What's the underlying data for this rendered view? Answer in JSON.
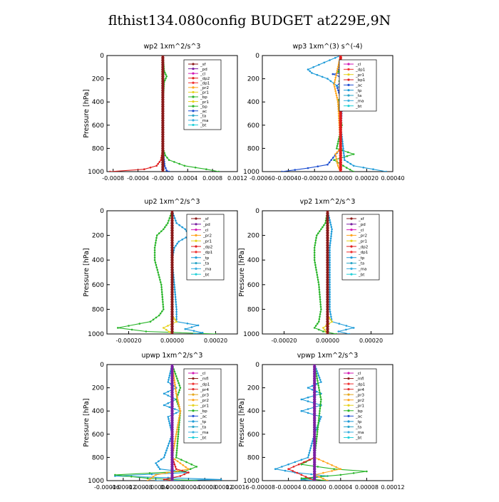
{
  "page": {
    "title": "flthist134.080config  BUDGET at229E,9N"
  },
  "colors": {
    "sf": "#8b1a1a",
    "pd": "#7a1fa2",
    "cl": "#d31ab5",
    "dp2": "#e01e1e",
    "dp1": "#f03030",
    "pr2": "#ffa51e",
    "pr1": "#e6d21e",
    "bp": "#2ab52a",
    "ac": "#1e4fd1",
    "tp": "#1e9bd8",
    "ta": "#2aa5c8",
    "ma": "#3cb0e0",
    "bt": "#20d0d8",
    "mfl": "#8b1a1a",
    "pr3": "#e6a81e",
    "pr4": "#e03030",
    "axis": "#000000"
  },
  "chart_data": [
    {
      "type": "line",
      "title": "wp2   1xm^2/s^3",
      "ylabel": "Pressure  [hPa]",
      "xlim": [
        -0.0009,
        0.0012
      ],
      "ylim": [
        1000,
        0
      ],
      "xticks": [
        -0.0008,
        -0.0004,
        0.0,
        0.0004,
        0.0008,
        0.0012
      ],
      "xtick_labels": [
        "-0.0008",
        "-0.0004",
        "-0.0000",
        "0.0004",
        "0.0008",
        "0.0012"
      ],
      "yticks": [
        0,
        200,
        400,
        600,
        800,
        1000
      ],
      "legend": [
        "_sf",
        "_pd",
        "_cl",
        "_dp2",
        "_dp1",
        "_pr2",
        "_pr1",
        "_bp",
        "_pr1",
        "_bp",
        "_ac",
        "_ta",
        "_ma",
        "_bt"
      ],
      "legend_position": "top-right",
      "series": [
        {
          "name": "_dp2",
          "key": "dp2",
          "y": [
            0,
            100,
            200,
            400,
            600,
            800,
            900,
            950,
            980,
            1000
          ],
          "values": [
            0,
            0,
            0,
            0,
            0,
            0,
            -3e-05,
            -0.0001,
            -0.0003,
            -0.00085
          ]
        },
        {
          "name": "_bp",
          "key": "bp",
          "y": [
            0,
            130,
            180,
            230,
            400,
            800,
            860,
            900,
            950,
            980,
            1000
          ],
          "values": [
            0,
            2e-05,
            6e-05,
            2e-05,
            0,
            0,
            4e-05,
            0.0001,
            0.00035,
            0.0007,
            0.0009
          ]
        },
        {
          "name": "_ac",
          "key": "ac",
          "y": [
            0,
            800,
            950,
            990,
            1000
          ],
          "values": [
            0,
            0,
            3e-05,
            6e-05,
            0.0001
          ]
        },
        {
          "name": "_sf",
          "key": "sf",
          "y": [
            0,
            200,
            400,
            600,
            800,
            1000
          ],
          "values": [
            0,
            0,
            0,
            0,
            0,
            0
          ]
        }
      ]
    },
    {
      "type": "line",
      "title": "wp3   1xm^(3) s^(-4)",
      "ylabel": "",
      "xlim": [
        -0.0006,
        0.0004
      ],
      "ylim": [
        1000,
        0
      ],
      "xticks": [
        -0.0006,
        -0.0004,
        -0.0002,
        0.0,
        0.0002,
        0.0004
      ],
      "xtick_labels": [
        "-0.00060",
        "-0.00040",
        "-0.00020",
        "0.00000",
        "0.00020",
        "0.00040"
      ],
      "yticks": [
        0,
        200,
        400,
        600,
        800,
        1000
      ],
      "legend": [
        "_cl",
        "_dp1",
        "_pr1",
        "_bp1",
        "_ac",
        "_tp",
        "_ta",
        "_ma",
        "_bt"
      ],
      "legend_position": "top-right",
      "series": [
        {
          "name": "_bp1",
          "key": "bp",
          "y": [
            0,
            100,
            140,
            180,
            220,
            300,
            400,
            600,
            800,
            850,
            900,
            950,
            1000
          ],
          "values": [
            0,
            1e-05,
            -2e-05,
            3e-05,
            -1e-05,
            2e-05,
            -2e-05,
            1e-05,
            -3e-05,
            0.0001,
            -5e-05,
            2e-05,
            0.0001
          ]
        },
        {
          "name": "_ac",
          "key": "ac",
          "y": [
            0,
            120,
            140,
            160,
            200,
            260,
            400,
            800,
            940,
            970,
            1000
          ],
          "values": [
            0,
            -2e-05,
            0.00012,
            -6e-05,
            4e-05,
            -3e-05,
            1e-05,
            0,
            -0.0001,
            -0.00025,
            -0.00045
          ]
        },
        {
          "name": "_tp",
          "key": "tp",
          "y": [
            0,
            120,
            150,
            200,
            300,
            400,
            600,
            900,
            950,
            980,
            1000
          ],
          "values": [
            0,
            -0.00025,
            -0.00022,
            -0.0001,
            2e-05,
            0,
            0,
            3e-05,
            0.0001,
            0.00025,
            0.00035
          ]
        },
        {
          "name": "_pr1",
          "key": "pr2",
          "y": [
            0,
            150,
            250,
            400,
            800,
            850,
            950,
            1000
          ],
          "values": [
            0,
            -3e-05,
            -5e-05,
            -2e-05,
            0,
            -4e-05,
            -2e-05,
            0
          ]
        },
        {
          "name": "_cl",
          "key": "dp2",
          "y": [
            0,
            200,
            400,
            600,
            800,
            1000
          ],
          "values": [
            0,
            0,
            0,
            0,
            0,
            0
          ]
        }
      ]
    },
    {
      "type": "line",
      "title": "up2   1xm^2/s^3",
      "ylabel": "Pressure  [hPa]",
      "xlim": [
        -0.0003,
        0.0003
      ],
      "ylim": [
        1000,
        0
      ],
      "xticks": [
        -0.0002,
        0.0,
        0.0002
      ],
      "xtick_labels": [
        "-0.00020",
        "0.00000",
        "0.00020"
      ],
      "yticks": [
        0,
        200,
        400,
        600,
        800,
        1000
      ],
      "legend": [
        "_sf",
        "_pd",
        "_cl",
        "_pr2",
        "_pr1",
        "_dp2",
        "_dp1",
        "_tp",
        "_ta",
        "_ma",
        "_bt"
      ],
      "legend_position": "top-right",
      "series": [
        {
          "name": "_dp1",
          "key": "bp",
          "y": [
            0,
            100,
            150,
            200,
            300,
            400,
            600,
            800,
            850,
            900,
            950,
            980,
            1000
          ],
          "values": [
            0,
            -2e-05,
            -4e-05,
            -7e-05,
            -8e-05,
            -8e-05,
            -5e-05,
            -4e-05,
            -6e-05,
            -0.0001,
            -0.00025,
            -0.00012,
            0.0002
          ]
        },
        {
          "name": "_tp",
          "key": "tp",
          "y": [
            0,
            100,
            150,
            200,
            250,
            300,
            400,
            800,
            900,
            930,
            960,
            990,
            1000
          ],
          "values": [
            0,
            2e-05,
            6e-05,
            8e-05,
            3e-05,
            1e-05,
            0,
            2e-05,
            2e-05,
            0.00012,
            6e-05,
            0.00014,
            0.0001
          ]
        },
        {
          "name": "_pr1",
          "key": "pr1",
          "y": [
            0,
            850,
            900,
            950,
            1000
          ],
          "values": [
            0,
            0,
            2e-05,
            -4e-05,
            0
          ]
        },
        {
          "name": "_sf",
          "key": "sf",
          "y": [
            0,
            200,
            400,
            600,
            800,
            1000
          ],
          "values": [
            0,
            0,
            0,
            0,
            0,
            0
          ]
        }
      ]
    },
    {
      "type": "line",
      "title": "vp2   1xm^2/s^3",
      "ylabel": "Pressure  [hPa]",
      "xlim": [
        -0.0003,
        0.0003
      ],
      "ylim": [
        1000,
        0
      ],
      "xticks": [
        -0.0002,
        0.0,
        0.0002
      ],
      "xtick_labels": [
        "-0.00020",
        "0.00000",
        "0.00020"
      ],
      "yticks": [
        0,
        200,
        400,
        600,
        800,
        1000
      ],
      "legend": [
        "_sf",
        "_pd",
        "_cl",
        "_pr2",
        "_pr1",
        "_dp2",
        "_dp1",
        "_tp",
        "_ta",
        "_ma",
        "_bt"
      ],
      "legend_position": "top-right",
      "series": [
        {
          "name": "_dp1",
          "key": "bp",
          "y": [
            0,
            100,
            150,
            200,
            300,
            400,
            600,
            800,
            900,
            950,
            980,
            1000
          ],
          "values": [
            0,
            -1e-05,
            -3e-05,
            -5e-05,
            -6e-05,
            -6e-05,
            -4e-05,
            -3e-05,
            -4e-05,
            -6e-05,
            -2e-05,
            4e-05
          ]
        },
        {
          "name": "_tp",
          "key": "tp",
          "y": [
            0,
            150,
            300,
            800,
            900,
            950,
            980,
            1000
          ],
          "values": [
            0,
            2e-05,
            1e-05,
            1e-05,
            2e-05,
            0.00012,
            5e-05,
            0.0001
          ]
        },
        {
          "name": "_pr1",
          "key": "pr1",
          "y": [
            0,
            850,
            900,
            950,
            1000
          ],
          "values": [
            0,
            0,
            2e-05,
            -2e-05,
            0
          ]
        },
        {
          "name": "_sf",
          "key": "sf",
          "y": [
            0,
            200,
            400,
            600,
            800,
            1000
          ],
          "values": [
            0,
            0,
            0,
            0,
            0,
            0
          ]
        }
      ]
    },
    {
      "type": "line",
      "title": "upwp   1xm^2/s^3",
      "ylabel": "Pressure  [hPa]",
      "xlim": [
        -0.00016,
        0.00016
      ],
      "ylim": [
        1000,
        0
      ],
      "xticks": [
        -0.00016,
        -0.00012,
        -8e-05,
        -4e-05,
        0.0,
        4e-05,
        8e-05,
        0.00012,
        0.00016
      ],
      "xtick_labels": [
        "-0.00016",
        "-0.00012",
        "-0.00008",
        "-0.00004",
        "0.00000",
        "0.00004",
        "0.00008",
        "0.00012",
        "0.00016"
      ],
      "yticks": [
        0,
        200,
        400,
        600,
        800,
        1000
      ],
      "legend": [
        "_cl",
        "_mfl",
        "_dp1",
        "_pr4",
        "_pr3",
        "_pr2",
        "_pr1",
        "_bp",
        "_ac",
        "_tp",
        "_ta",
        "_ma",
        "_bt"
      ],
      "legend_position": "top-right",
      "series": [
        {
          "name": "_tp",
          "key": "tp",
          "y": [
            0,
            150,
            200,
            250,
            300,
            350,
            400,
            450,
            600,
            800,
            850,
            900,
            930,
            960,
            990,
            1000
          ],
          "values": [
            0,
            -1e-05,
            1e-05,
            -2e-05,
            1e-05,
            -2e-05,
            2e-05,
            -1e-05,
            0,
            -2e-05,
            -4e-05,
            -3e-05,
            4e-05,
            -0.00014,
            0.00012,
            -4e-05
          ]
        },
        {
          "name": "_bp",
          "key": "bp",
          "y": [
            0,
            200,
            300,
            400,
            800,
            880,
            920,
            950,
            980,
            1000
          ],
          "values": [
            0,
            2e-05,
            1e-05,
            2e-05,
            1e-05,
            6e-05,
            3e-05,
            -0.00014,
            -6e-05,
            6e-05
          ]
        },
        {
          "name": "_pr1",
          "key": "pr2",
          "y": [
            0,
            250,
            400,
            800,
            850,
            900,
            950,
            1000
          ],
          "values": [
            0,
            1e-05,
            2e-05,
            0,
            2e-05,
            4e-05,
            -4e-05,
            -6e-05
          ]
        },
        {
          "name": "_dp1",
          "key": "dp2",
          "y": [
            0,
            800,
            900,
            930,
            960,
            990,
            1000
          ],
          "values": [
            0,
            0,
            1e-05,
            4e-05,
            2e-05,
            -2e-05,
            0
          ]
        },
        {
          "name": "_cl",
          "key": "pd",
          "y": [
            0,
            200,
            400,
            600,
            800,
            1000
          ],
          "values": [
            0,
            0,
            0,
            0,
            0,
            0
          ]
        }
      ]
    },
    {
      "type": "line",
      "title": "vpwp   1xm^2/s^3",
      "ylabel": "Pressure  [hPa]",
      "xlim": [
        -8e-05,
        0.00012
      ],
      "ylim": [
        1000,
        0
      ],
      "xticks": [
        -8e-05,
        -4e-05,
        0.0,
        4e-05,
        8e-05,
        0.00012
      ],
      "xtick_labels": [
        "-0.00008",
        "-0.00004",
        "0.00000",
        "0.00004",
        "0.00008",
        "0.00012"
      ],
      "yticks": [
        0,
        200,
        400,
        600,
        800,
        1000
      ],
      "legend": [
        "_cl",
        "_mfl",
        "_dp1",
        "_pr4",
        "_pr3",
        "_pr2",
        "_pr1",
        "_bp",
        "_ac",
        "_tp",
        "_ta",
        "_ma",
        "_bt"
      ],
      "legend_position": "top-right",
      "series": [
        {
          "name": "_tp",
          "key": "tp",
          "y": [
            0,
            150,
            200,
            250,
            300,
            350,
            400,
            450,
            600,
            800,
            860,
            900,
            930,
            960,
            990,
            1000
          ],
          "values": [
            0,
            1e-05,
            -1e-05,
            1e-05,
            -2e-05,
            1e-05,
            -2e-05,
            1e-05,
            0,
            -1e-05,
            -4e-05,
            -6e-05,
            -3e-05,
            2e-05,
            -2e-05,
            0
          ]
        },
        {
          "name": "_bp",
          "key": "bp",
          "y": [
            0,
            300,
            800,
            860,
            900,
            920,
            950,
            980,
            1000
          ],
          "values": [
            0,
            1e-05,
            0,
            -2e-05,
            3e-05,
            8e-05,
            4e-05,
            -2e-05,
            2e-05
          ]
        },
        {
          "name": "_pr1",
          "key": "pr2",
          "y": [
            0,
            800,
            850,
            900,
            950,
            1000
          ],
          "values": [
            0,
            0,
            2e-05,
            4e-05,
            0,
            2e-05
          ]
        },
        {
          "name": "_dp1",
          "key": "dp2",
          "y": [
            0,
            800,
            900,
            950,
            1000
          ],
          "values": [
            0,
            0,
            -4e-05,
            -2e-05,
            0
          ]
        },
        {
          "name": "_cl",
          "key": "pd",
          "y": [
            0,
            200,
            400,
            600,
            800,
            1000
          ],
          "values": [
            0,
            0,
            0,
            0,
            0,
            0
          ]
        }
      ]
    }
  ]
}
